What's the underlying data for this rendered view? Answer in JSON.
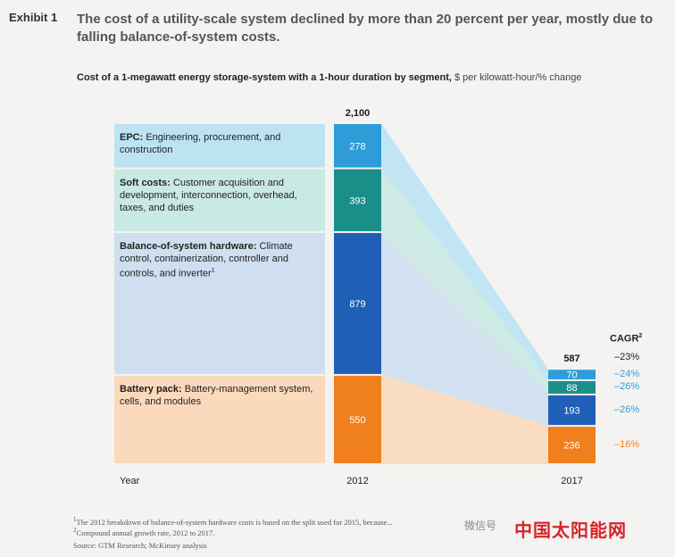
{
  "exhibit": "Exhibit 1",
  "headline": "The cost of a utility-scale system declined by more than 20 percent per year, mostly due to falling balance-of-system costs.",
  "subtitle_bold": "Cost of a 1-megawatt energy storage-system with a 1-hour duration by segment,",
  "subtitle_unit": "$ per kilowatt-hour/% change",
  "segment_labels": [
    {
      "name": "EPC:",
      "text": "Engineering, procurement, and construction"
    },
    {
      "name": "Soft costs:",
      "text": "Customer acquisition and development, interconnection, overhead, taxes, and duties"
    },
    {
      "name": "Balance-of-system hardware:",
      "text": "Climate control, containerization, controller and controls, and inverter",
      "note": "1"
    },
    {
      "name": "Battery pack:",
      "text": "Battery-management system, cells, and modules"
    }
  ],
  "cagr_header": "CAGR",
  "cagr_header_note": "2",
  "footnotes": [
    {
      "mark": "1",
      "text": "The 2012 breakdown of balance-of-system hardware costs is based on the split used for 2015, because..."
    },
    {
      "mark": "2",
      "text": "Compound annual growth rate, 2012 to 2017."
    }
  ],
  "source": "Source: GTM Research; McKinsey analysis",
  "watermark": "中国太阳能网",
  "wechat": "微信号",
  "colors": {
    "epc": "#2e9cd9",
    "soft": "#1a8f8a",
    "bos": "#1f5fb5",
    "battery": "#f07f1e",
    "epc_band": "#bde3f3",
    "soft_band": "#c9e9e3",
    "bos_band": "#cfdff0",
    "battery_band": "#fbd9bd",
    "cagr_blue": "#2e9cd9",
    "cagr_orange": "#f07f1e"
  },
  "chart_data": {
    "type": "bar",
    "stacked": true,
    "x_label": "Year",
    "categories": [
      "2012",
      "2017"
    ],
    "totals": [
      2100,
      587
    ],
    "total_labels": [
      "2,100",
      "587"
    ],
    "series": [
      {
        "name": "Battery pack",
        "key": "battery",
        "values": [
          550,
          236
        ],
        "cagr": "–16%"
      },
      {
        "name": "Balance-of-system hardware",
        "key": "bos",
        "values": [
          879,
          193
        ],
        "cagr": "–26%"
      },
      {
        "name": "Soft costs",
        "key": "soft",
        "values": [
          393,
          88
        ],
        "cagr": "–26%"
      },
      {
        "name": "EPC",
        "key": "epc",
        "values": [
          278,
          70
        ],
        "cagr": "–24%"
      }
    ],
    "total_cagr": "–23%"
  }
}
